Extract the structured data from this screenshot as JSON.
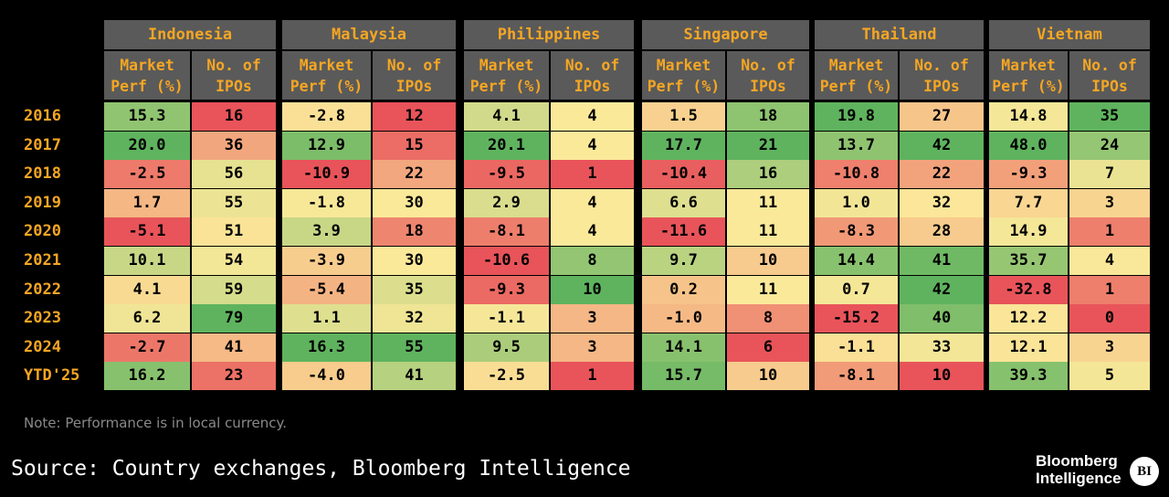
{
  "chart_data": {
    "type": "table",
    "years": [
      "2016",
      "2017",
      "2018",
      "2019",
      "2020",
      "2021",
      "2022",
      "2023",
      "2024",
      "YTD'25"
    ],
    "column_header_line1": [
      "Market",
      "No. of"
    ],
    "column_header_line2": [
      "Perf (%)",
      "IPOs"
    ],
    "countries": [
      {
        "name": "Indonesia",
        "market_perf": [
          15.3,
          20.0,
          -2.5,
          1.7,
          -5.1,
          10.1,
          4.1,
          6.2,
          -2.7,
          16.2
        ],
        "ipos": [
          16,
          36,
          56,
          55,
          51,
          54,
          59,
          79,
          41,
          23
        ]
      },
      {
        "name": "Malaysia",
        "market_perf": [
          -2.8,
          12.9,
          -10.9,
          -1.8,
          3.9,
          -3.9,
          -5.4,
          1.1,
          16.3,
          -4.0
        ],
        "ipos": [
          12,
          15,
          22,
          30,
          18,
          30,
          35,
          32,
          55,
          41
        ]
      },
      {
        "name": "Philippines",
        "market_perf": [
          4.1,
          20.1,
          -9.5,
          2.9,
          -8.1,
          -10.6,
          -9.3,
          -1.1,
          9.5,
          -2.5
        ],
        "ipos": [
          4,
          4,
          1,
          4,
          4,
          8,
          10,
          3,
          3,
          1
        ]
      },
      {
        "name": "Singapore",
        "market_perf": [
          1.5,
          17.7,
          -10.4,
          6.6,
          -11.6,
          9.7,
          0.2,
          -1.0,
          14.1,
          15.7
        ],
        "ipos": [
          18,
          21,
          16,
          11,
          11,
          10,
          11,
          8,
          6,
          10
        ]
      },
      {
        "name": "Thailand",
        "market_perf": [
          19.8,
          13.7,
          -10.8,
          1.0,
          -8.3,
          14.4,
          0.7,
          -15.2,
          -1.1,
          -8.1
        ],
        "ipos": [
          27,
          42,
          22,
          32,
          28,
          41,
          42,
          40,
          33,
          10
        ]
      },
      {
        "name": "Vietnam",
        "market_perf": [
          14.8,
          48.0,
          -9.3,
          7.7,
          14.9,
          35.7,
          -32.8,
          12.2,
          12.1,
          39.3
        ],
        "ipos": [
          35,
          24,
          7,
          3,
          1,
          4,
          1,
          0,
          3,
          5
        ]
      }
    ],
    "colors": {
      "low": "#e8545a",
      "mid": "#fbe99a",
      "high": "#5fb35e",
      "header_bg": "#5a5a5a",
      "header_text": "#f5a623"
    }
  },
  "footer": {
    "note": "Note: Performance is in local currency.",
    "source": "Source: Country exchanges, Bloomberg Intelligence",
    "logo_line1": "Bloomberg",
    "logo_line2": "Intelligence",
    "logo_badge": "BI"
  }
}
